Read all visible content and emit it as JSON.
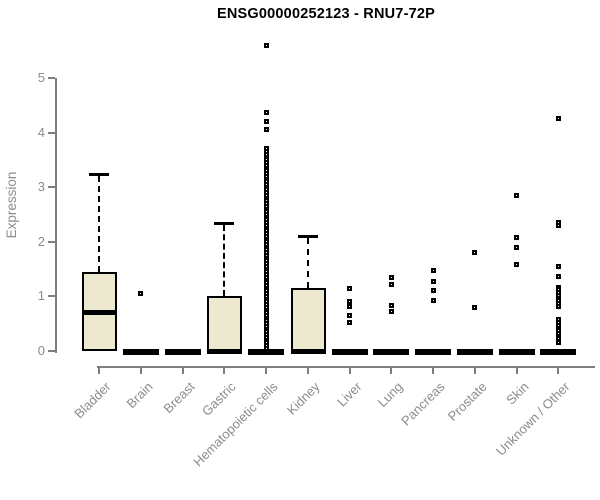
{
  "chart_data": {
    "type": "boxplot",
    "title": "ENSG00000252123 - RNU7-72P",
    "xlabel": "",
    "ylabel": "Expression",
    "ylim": [
      0,
      5
    ],
    "yticks": [
      0,
      1,
      2,
      3,
      4,
      5
    ],
    "grid": "off",
    "legend": "none",
    "categories": [
      "Bladder",
      "Brain",
      "Breast",
      "Gastric",
      "Hematopoietic cells",
      "Kidney",
      "Liver",
      "Lung",
      "Pancreas",
      "Prostate",
      "Skin",
      "Unknown / Other"
    ],
    "series": [
      {
        "name": "Bladder",
        "q1": 0,
        "median": 0.72,
        "q3": 1.45,
        "whisker_low": 0,
        "whisker_high": 3.25,
        "outliers": []
      },
      {
        "name": "Brain",
        "q1": 0,
        "median": 0,
        "q3": 0,
        "whisker_low": 0,
        "whisker_high": 0,
        "outliers": [
          1.05
        ]
      },
      {
        "name": "Breast",
        "q1": 0,
        "median": 0,
        "q3": 0,
        "whisker_low": 0,
        "whisker_high": 0,
        "outliers": []
      },
      {
        "name": "Gastric",
        "q1": 0,
        "median": 0,
        "q3": 1.0,
        "whisker_low": 0,
        "whisker_high": 2.35,
        "outliers": []
      },
      {
        "name": "Hematopoietic cells",
        "q1": 0,
        "median": 0,
        "q3": 0,
        "whisker_low": 0,
        "whisker_high": 0,
        "outliers": [
          5.6,
          4.36,
          4.2,
          4.05,
          3.7,
          3.65,
          3.6,
          3.55,
          3.5,
          3.45,
          3.4,
          3.35,
          3.3,
          3.25,
          3.2,
          3.15,
          3.1,
          3.05,
          3.0,
          2.95,
          2.9,
          2.85,
          2.8,
          2.75,
          2.7,
          2.65,
          2.6,
          2.55,
          2.5,
          2.45,
          2.4,
          2.35,
          2.3,
          2.25,
          2.2,
          2.15,
          2.1,
          2.05,
          2.0,
          1.95,
          1.9,
          1.85,
          1.8,
          1.75,
          1.7,
          1.65,
          1.6,
          1.55,
          1.5,
          1.45,
          1.4,
          1.35,
          1.3,
          1.25,
          1.2,
          1.15,
          1.1,
          1.05,
          1.0,
          0.95,
          0.9,
          0.85,
          0.8,
          0.75,
          0.7,
          0.65,
          0.6,
          0.55,
          0.5,
          0.45,
          0.4,
          0.35,
          0.3,
          0.25,
          0.2,
          0.15,
          0.1,
          0.05
        ]
      },
      {
        "name": "Kidney",
        "q1": 0,
        "median": 0,
        "q3": 1.15,
        "whisker_low": 0,
        "whisker_high": 2.1,
        "outliers": []
      },
      {
        "name": "Liver",
        "q1": 0,
        "median": 0,
        "q3": 0,
        "whisker_low": 0,
        "whisker_high": 0,
        "outliers": [
          1.15,
          0.9,
          0.82,
          0.65,
          0.53
        ]
      },
      {
        "name": "Lung",
        "q1": 0,
        "median": 0,
        "q3": 0,
        "whisker_low": 0,
        "whisker_high": 0,
        "outliers": [
          1.35,
          1.22,
          0.84,
          0.73
        ]
      },
      {
        "name": "Pancreas",
        "q1": 0,
        "median": 0,
        "q3": 0,
        "whisker_low": 0,
        "whisker_high": 0,
        "outliers": [
          1.48,
          1.28,
          1.1,
          0.93
        ]
      },
      {
        "name": "Prostate",
        "q1": 0,
        "median": 0,
        "q3": 0,
        "whisker_low": 0,
        "whisker_high": 0,
        "outliers": [
          1.8,
          0.8
        ]
      },
      {
        "name": "Skin",
        "q1": 0,
        "median": 0,
        "q3": 0,
        "whisker_low": 0,
        "whisker_high": 0,
        "outliers": [
          2.85,
          2.07,
          1.9,
          1.58
        ]
      },
      {
        "name": "Unknown / Other",
        "q1": 0,
        "median": 0,
        "q3": 0,
        "whisker_low": 0,
        "whisker_high": 0,
        "outliers": [
          4.25,
          2.35,
          2.3,
          1.54,
          1.36,
          1.17,
          1.12,
          1.07,
          1.02,
          0.97,
          0.92,
          0.87,
          0.82,
          0.57,
          0.52,
          0.47,
          0.42,
          0.37,
          0.32,
          0.27,
          0.22,
          0.16
        ]
      }
    ],
    "colors": {
      "background": "#ffffff",
      "box_fill": "#ede8d0",
      "box_border": "#000000",
      "median": "#000000",
      "whisker": "#000000",
      "outlier": "#000000",
      "axis": "#7e7e7e",
      "tick_label": "#8c8c8c",
      "title": "#000000"
    }
  }
}
